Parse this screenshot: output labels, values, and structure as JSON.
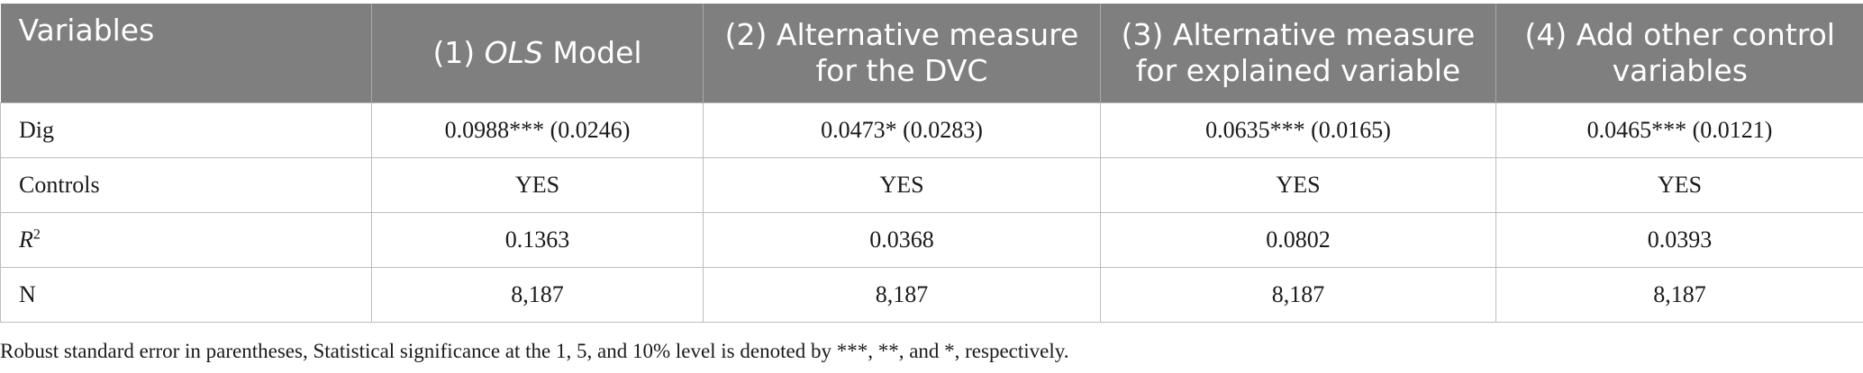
{
  "table": {
    "headers": [
      {
        "text": "Variables"
      },
      {
        "prefix": "(1) ",
        "italic": "OLS",
        "suffix": " Model"
      },
      {
        "line1": "(2) Alternative measure",
        "line2": "for the DVC"
      },
      {
        "line1": "(3) Alternative measure",
        "line2": "for explained variable"
      },
      {
        "line1": "(4) Add other control",
        "line2": "variables"
      }
    ],
    "rows": [
      {
        "label": "Dig",
        "values": [
          "0.0988*** (0.0246)",
          "0.0473* (0.0283)",
          "0.0635*** (0.0165)",
          "0.0465*** (0.0121)"
        ]
      },
      {
        "label": "Controls",
        "values": [
          "YES",
          "YES",
          "YES",
          "YES"
        ]
      },
      {
        "label_base": "R",
        "label_sup": "2",
        "values": [
          "0.1363",
          "0.0368",
          "0.0802",
          "0.0393"
        ]
      },
      {
        "label": "N",
        "values": [
          "8,187",
          "8,187",
          "8,187",
          "8,187"
        ]
      }
    ]
  },
  "footnote": "Robust standard error in parentheses, Statistical significance at the 1, 5, and 10% level is denoted by ***, **, and *, respectively.",
  "colors": {
    "header_bg": "#7f7f7f",
    "header_text": "#ffffff",
    "grid": "#bdbdbd"
  }
}
